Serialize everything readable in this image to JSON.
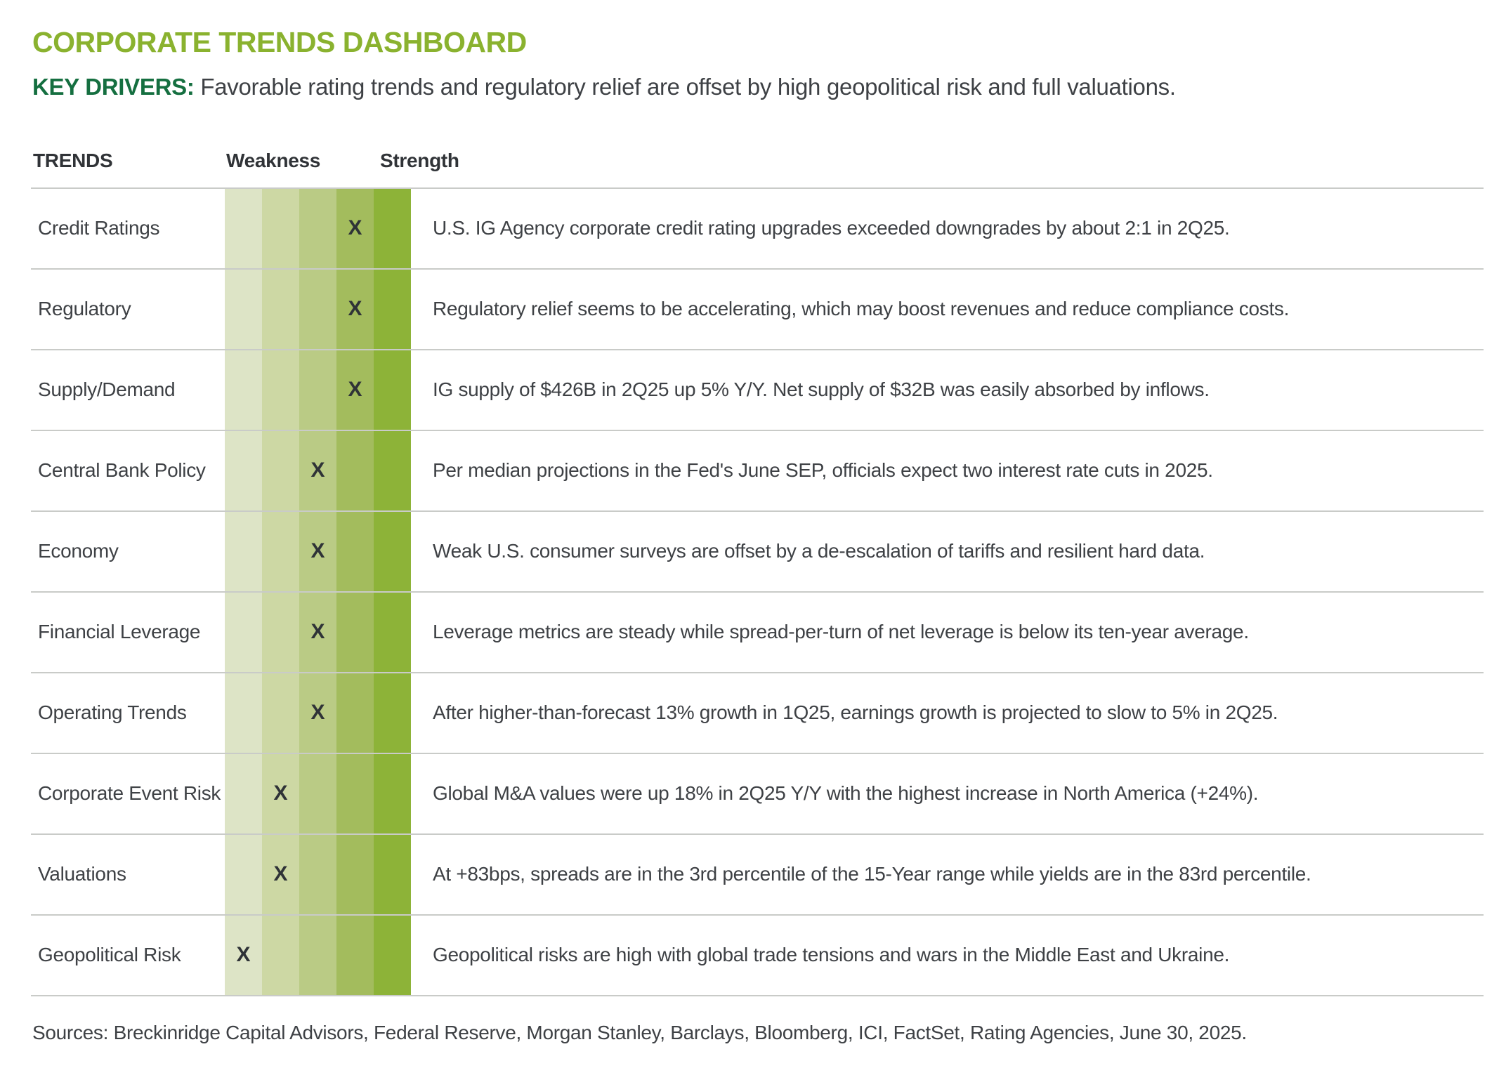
{
  "page": {
    "title": "CORPORATE TRENDS DASHBOARD",
    "key_drivers_label": "KEY DRIVERS:",
    "key_drivers_text": "Favorable rating trends and regulatory relief are offset by high geopolitical risk and full valuations.",
    "sources": "Sources: Breckinridge Capital Advisors, Federal Reserve, Morgan Stanley, Barclays, Bloomberg, ICI, FactSet, Rating Agencies, June 30, 2025."
  },
  "table": {
    "headers": {
      "trends": "TRENDS",
      "weakness": "Weakness",
      "strength": "Strength"
    },
    "marker": "X",
    "scale_colors": [
      "#dde4c6",
      "#cdd8a4",
      "#bacb85",
      "#a3bc5d",
      "#8db338"
    ],
    "rows": [
      {
        "label": "Credit Ratings",
        "level": 4,
        "description": "U.S. IG Agency corporate credit rating upgrades exceeded downgrades by about 2:1 in 2Q25."
      },
      {
        "label": "Regulatory",
        "level": 4,
        "description": "Regulatory relief seems to be accelerating, which may boost revenues and reduce compliance costs."
      },
      {
        "label": "Supply/Demand",
        "level": 4,
        "description": "IG supply of $426B in 2Q25 up 5% Y/Y. Net supply of $32B was easily absorbed by inflows."
      },
      {
        "label": "Central Bank Policy",
        "level": 3,
        "description": "Per median projections in the Fed's June SEP, officials expect two interest rate cuts in 2025."
      },
      {
        "label": "Economy",
        "level": 3,
        "description": "Weak U.S. consumer surveys are offset by a de-escalation of tariffs and resilient hard data."
      },
      {
        "label": "Financial Leverage",
        "level": 3,
        "description": "Leverage metrics are steady while spread-per-turn of net leverage is below its ten-year average."
      },
      {
        "label": "Operating Trends",
        "level": 3,
        "description": "After higher-than-forecast 13% growth in 1Q25, earnings growth is projected to slow to 5% in 2Q25."
      },
      {
        "label": "Corporate Event Risk",
        "level": 2,
        "description": "Global M&A values were up 18% in 2Q25 Y/Y with the highest increase in North America (+24%)."
      },
      {
        "label": "Valuations",
        "level": 2,
        "description": "At +83bps, spreads are in the 3rd percentile of the 15-Year range while yields are in the 83rd percentile."
      },
      {
        "label": "Geopolitical Risk",
        "level": 1,
        "description": "Geopolitical risks are high with global trade tensions and wars in the Middle East and Ukraine."
      }
    ]
  },
  "chart_data": {
    "type": "heatmap",
    "title": "CORPORATE TRENDS DASHBOARD",
    "subtitle": "KEY DRIVERS: Favorable rating trends and regulatory relief are offset by high geopolitical risk and full valuations.",
    "x_axis": {
      "label_left": "Weakness",
      "label_right": "Strength",
      "levels": 5,
      "range": [
        1,
        5
      ]
    },
    "categories": [
      "Credit Ratings",
      "Regulatory",
      "Supply/Demand",
      "Central Bank Policy",
      "Economy",
      "Financial Leverage",
      "Operating Trends",
      "Corporate Event Risk",
      "Valuations",
      "Geopolitical Risk"
    ],
    "values": [
      4,
      4,
      4,
      3,
      3,
      3,
      3,
      2,
      2,
      1
    ],
    "annotations": [
      "U.S. IG Agency corporate credit rating upgrades exceeded downgrades by about 2:1 in 2Q25.",
      "Regulatory relief seems to be accelerating, which may boost revenues and reduce compliance costs.",
      "IG supply of $426B in 2Q25 up 5% Y/Y. Net supply of $32B was easily absorbed by inflows.",
      "Per median projections in the Fed's June SEP, officials expect two interest rate cuts in 2025.",
      "Weak U.S. consumer surveys are offset by a de-escalation of tariffs and resilient hard data.",
      "Leverage metrics are steady while spread-per-turn of net leverage is below its ten-year average.",
      "After higher-than-forecast 13% growth in 1Q25, earnings growth is projected to slow to 5% in 2Q25.",
      "Global M&A values were up 18% in 2Q25 Y/Y with the highest increase in North America (+24%).",
      "At +83bps, spreads are in the 3rd percentile of the 15-Year range while yields are in the 83rd percentile.",
      "Geopolitical risks are high with global trade tensions and wars in the Middle East and Ukraine."
    ],
    "colorscale": [
      "#dde4c6",
      "#cdd8a4",
      "#bacb85",
      "#a3bc5d",
      "#8db338"
    ],
    "marker": "X",
    "grid": false,
    "legend": false
  },
  "colors": {
    "title_green": "#8ab22f",
    "key_drivers_green": "#156f40",
    "text_dark": "#3e4145",
    "divider": "#c9cbc8"
  }
}
